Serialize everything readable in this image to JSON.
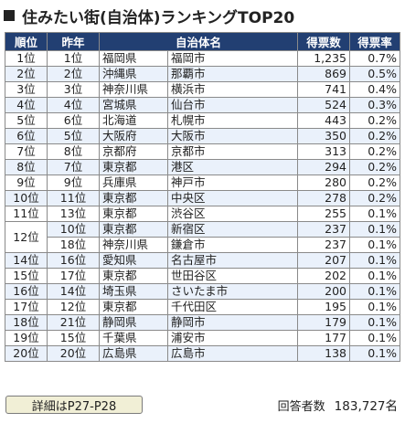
{
  "title": "住みたい街(自治体)ランキングTOP20",
  "headers": {
    "rank": "順位",
    "prev": "昨年",
    "municipality": "自治体名",
    "votes": "得票数",
    "rate": "得票率"
  },
  "rows": [
    {
      "rank": "1位",
      "prev": "1位",
      "pref": "福岡県",
      "city": "福岡市",
      "votes": "1,235",
      "rate": "0.7%"
    },
    {
      "rank": "2位",
      "prev": "2位",
      "pref": "沖縄県",
      "city": "那覇市",
      "votes": "869",
      "rate": "0.5%"
    },
    {
      "rank": "3位",
      "prev": "3位",
      "pref": "神奈川県",
      "city": "横浜市",
      "votes": "741",
      "rate": "0.4%"
    },
    {
      "rank": "4位",
      "prev": "4位",
      "pref": "宮城県",
      "city": "仙台市",
      "votes": "524",
      "rate": "0.3%"
    },
    {
      "rank": "5位",
      "prev": "6位",
      "pref": "北海道",
      "city": "札幌市",
      "votes": "443",
      "rate": "0.2%"
    },
    {
      "rank": "6位",
      "prev": "5位",
      "pref": "大阪府",
      "city": "大阪市",
      "votes": "350",
      "rate": "0.2%"
    },
    {
      "rank": "7位",
      "prev": "8位",
      "pref": "京都府",
      "city": "京都市",
      "votes": "313",
      "rate": "0.2%"
    },
    {
      "rank": "8位",
      "prev": "7位",
      "pref": "東京都",
      "city": "港区",
      "votes": "294",
      "rate": "0.2%"
    },
    {
      "rank": "9位",
      "prev": "9位",
      "pref": "兵庫県",
      "city": "神戸市",
      "votes": "280",
      "rate": "0.2%"
    },
    {
      "rank": "10位",
      "prev": "11位",
      "pref": "東京都",
      "city": "中央区",
      "votes": "278",
      "rate": "0.2%"
    },
    {
      "rank": "11位",
      "prev": "13位",
      "pref": "東京都",
      "city": "渋谷区",
      "votes": "255",
      "rate": "0.1%"
    },
    {
      "rank": "12位",
      "prev": "10位",
      "pref": "東京都",
      "city": "新宿区",
      "votes": "237",
      "rate": "0.1%"
    },
    {
      "rank": "",
      "prev": "18位",
      "pref": "神奈川県",
      "city": "鎌倉市",
      "votes": "237",
      "rate": "0.1%"
    },
    {
      "rank": "14位",
      "prev": "16位",
      "pref": "愛知県",
      "city": "名古屋市",
      "votes": "207",
      "rate": "0.1%"
    },
    {
      "rank": "15位",
      "prev": "17位",
      "pref": "東京都",
      "city": "世田谷区",
      "votes": "202",
      "rate": "0.1%"
    },
    {
      "rank": "16位",
      "prev": "14位",
      "pref": "埼玉県",
      "city": "さいたま市",
      "votes": "200",
      "rate": "0.1%"
    },
    {
      "rank": "17位",
      "prev": "12位",
      "pref": "東京都",
      "city": "千代田区",
      "votes": "195",
      "rate": "0.1%"
    },
    {
      "rank": "18位",
      "prev": "21位",
      "pref": "静岡県",
      "city": "静岡市",
      "votes": "179",
      "rate": "0.1%"
    },
    {
      "rank": "19位",
      "prev": "15位",
      "pref": "千葉県",
      "city": "浦安市",
      "votes": "177",
      "rate": "0.1%"
    },
    {
      "rank": "20位",
      "prev": "20位",
      "pref": "広島県",
      "city": "広島市",
      "votes": "138",
      "rate": "0.1%"
    }
  ],
  "footer": {
    "details_label": "詳細はP27-P28",
    "respondents_label": "回答者数",
    "respondents_value": "183,727名"
  },
  "colors": {
    "header_bg": "#223f72",
    "alt_row_bg": "#eaf1fb",
    "button_bg": "#f1efd6"
  }
}
